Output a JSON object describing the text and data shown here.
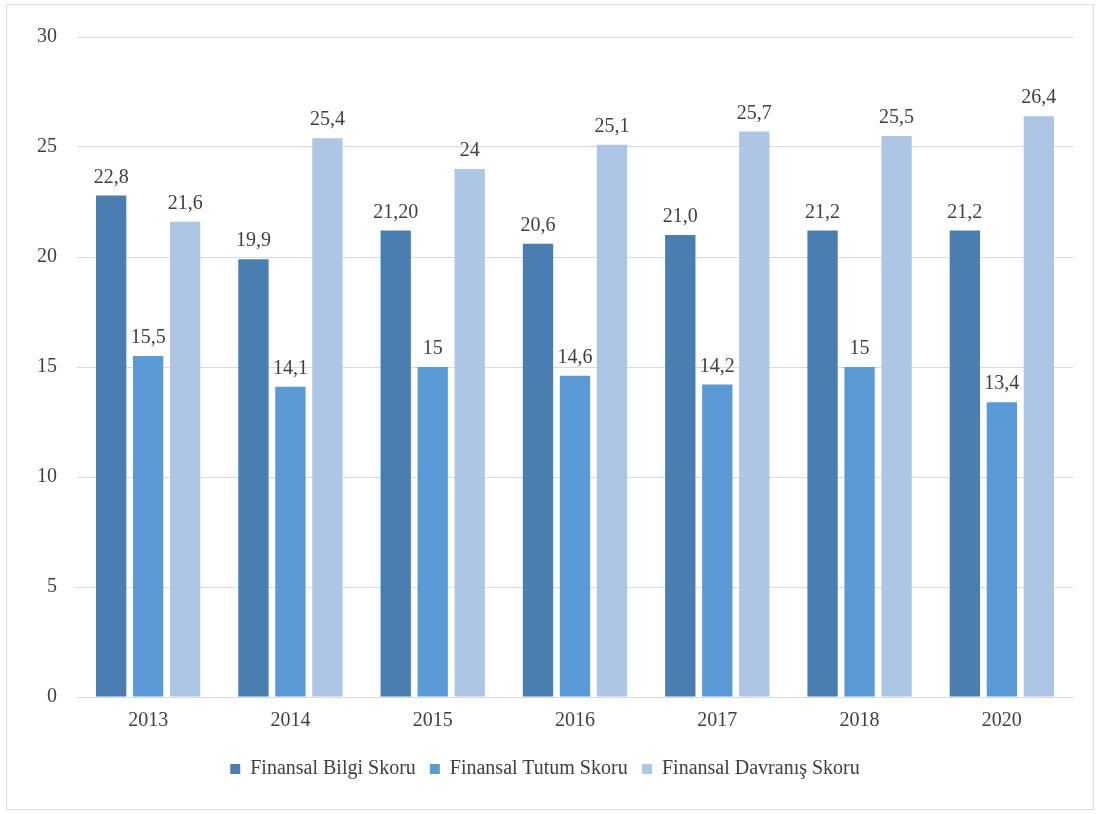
{
  "chart_data": {
    "type": "bar",
    "categories": [
      "2013",
      "2014",
      "2015",
      "2016",
      "2017",
      "2018",
      "2020"
    ],
    "series": [
      {
        "name": "Finansal Bilgi Skoru",
        "color": "#4a7eb0",
        "values": [
          22.8,
          19.9,
          21.2,
          20.6,
          21.0,
          21.2,
          21.2
        ],
        "value_labels": [
          "22,8",
          "19,9",
          "21,20",
          "20,6",
          "21,0",
          "21,2",
          "21,2"
        ]
      },
      {
        "name": "Finansal Tutum Skoru",
        "color": "#5b9bd5",
        "values": [
          15.5,
          14.1,
          15,
          14.6,
          14.2,
          15,
          13.4
        ],
        "value_labels": [
          "15,5",
          "14,1",
          "15",
          "14,6",
          "14,2",
          "15",
          "13,4"
        ]
      },
      {
        "name": "Finansal Davranış Skoru",
        "color": "#adc6e5",
        "values": [
          21.6,
          25.4,
          24,
          25.1,
          25.7,
          25.5,
          26.4
        ],
        "value_labels": [
          "21,6",
          "25,4",
          "24",
          "25,1",
          "25,7",
          "25,5",
          "26,4"
        ]
      }
    ],
    "ylim": [
      0,
      30
    ],
    "yticks": [
      0,
      5,
      10,
      15,
      20,
      25,
      30
    ],
    "grid": "y",
    "legend": "bottom"
  }
}
